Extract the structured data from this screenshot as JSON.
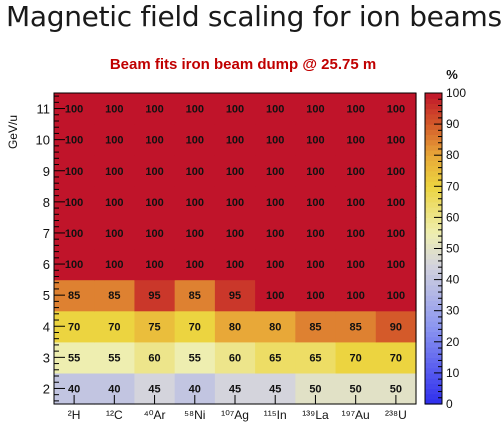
{
  "page": {
    "title": "Magnetic field scaling for ion beams"
  },
  "chart_data": {
    "type": "heatmap",
    "title": "Beam fits iron beam dump @ 25.75 m",
    "ylabel": "GeV/u",
    "x": [
      "²H",
      "¹²C",
      "⁴⁰Ar",
      "⁵⁸Ni",
      "¹⁰⁷Ag",
      "¹¹⁵In",
      "¹³⁹La",
      "¹⁹⁷Au",
      "²³⁸U"
    ],
    "y": [
      2,
      3,
      4,
      5,
      6,
      7,
      8,
      9,
      10,
      11
    ],
    "ylim": [
      1.5,
      11.5
    ],
    "values": [
      [
        40,
        40,
        45,
        40,
        45,
        45,
        50,
        50,
        50
      ],
      [
        55,
        55,
        60,
        55,
        60,
        65,
        65,
        70,
        70
      ],
      [
        70,
        70,
        75,
        70,
        80,
        80,
        85,
        85,
        90
      ],
      [
        85,
        85,
        95,
        85,
        95,
        100,
        100,
        100,
        100
      ],
      [
        100,
        100,
        100,
        100,
        100,
        100,
        100,
        100,
        100
      ],
      [
        100,
        100,
        100,
        100,
        100,
        100,
        100,
        100,
        100
      ],
      [
        100,
        100,
        100,
        100,
        100,
        100,
        100,
        100,
        100
      ],
      [
        100,
        100,
        100,
        100,
        100,
        100,
        100,
        100,
        100
      ],
      [
        100,
        100,
        100,
        100,
        100,
        100,
        100,
        100,
        100
      ],
      [
        100,
        100,
        100,
        100,
        100,
        100,
        100,
        100,
        100
      ]
    ],
    "colorbar": {
      "label": "%",
      "ticks": [
        0,
        10,
        20,
        30,
        40,
        50,
        60,
        70,
        80,
        90,
        100
      ],
      "range": [
        0,
        100
      ]
    },
    "colors": {
      "title": "#c00000",
      "palette": [
        [
          0,
          "#2e2eee"
        ],
        [
          25,
          "#8c96f0"
        ],
        [
          45,
          "#d4d4dc"
        ],
        [
          55,
          "#eeeeb0"
        ],
        [
          70,
          "#ecd440"
        ],
        [
          80,
          "#e8a838"
        ],
        [
          90,
          "#d45a2a"
        ],
        [
          100,
          "#c0142a"
        ]
      ]
    }
  }
}
